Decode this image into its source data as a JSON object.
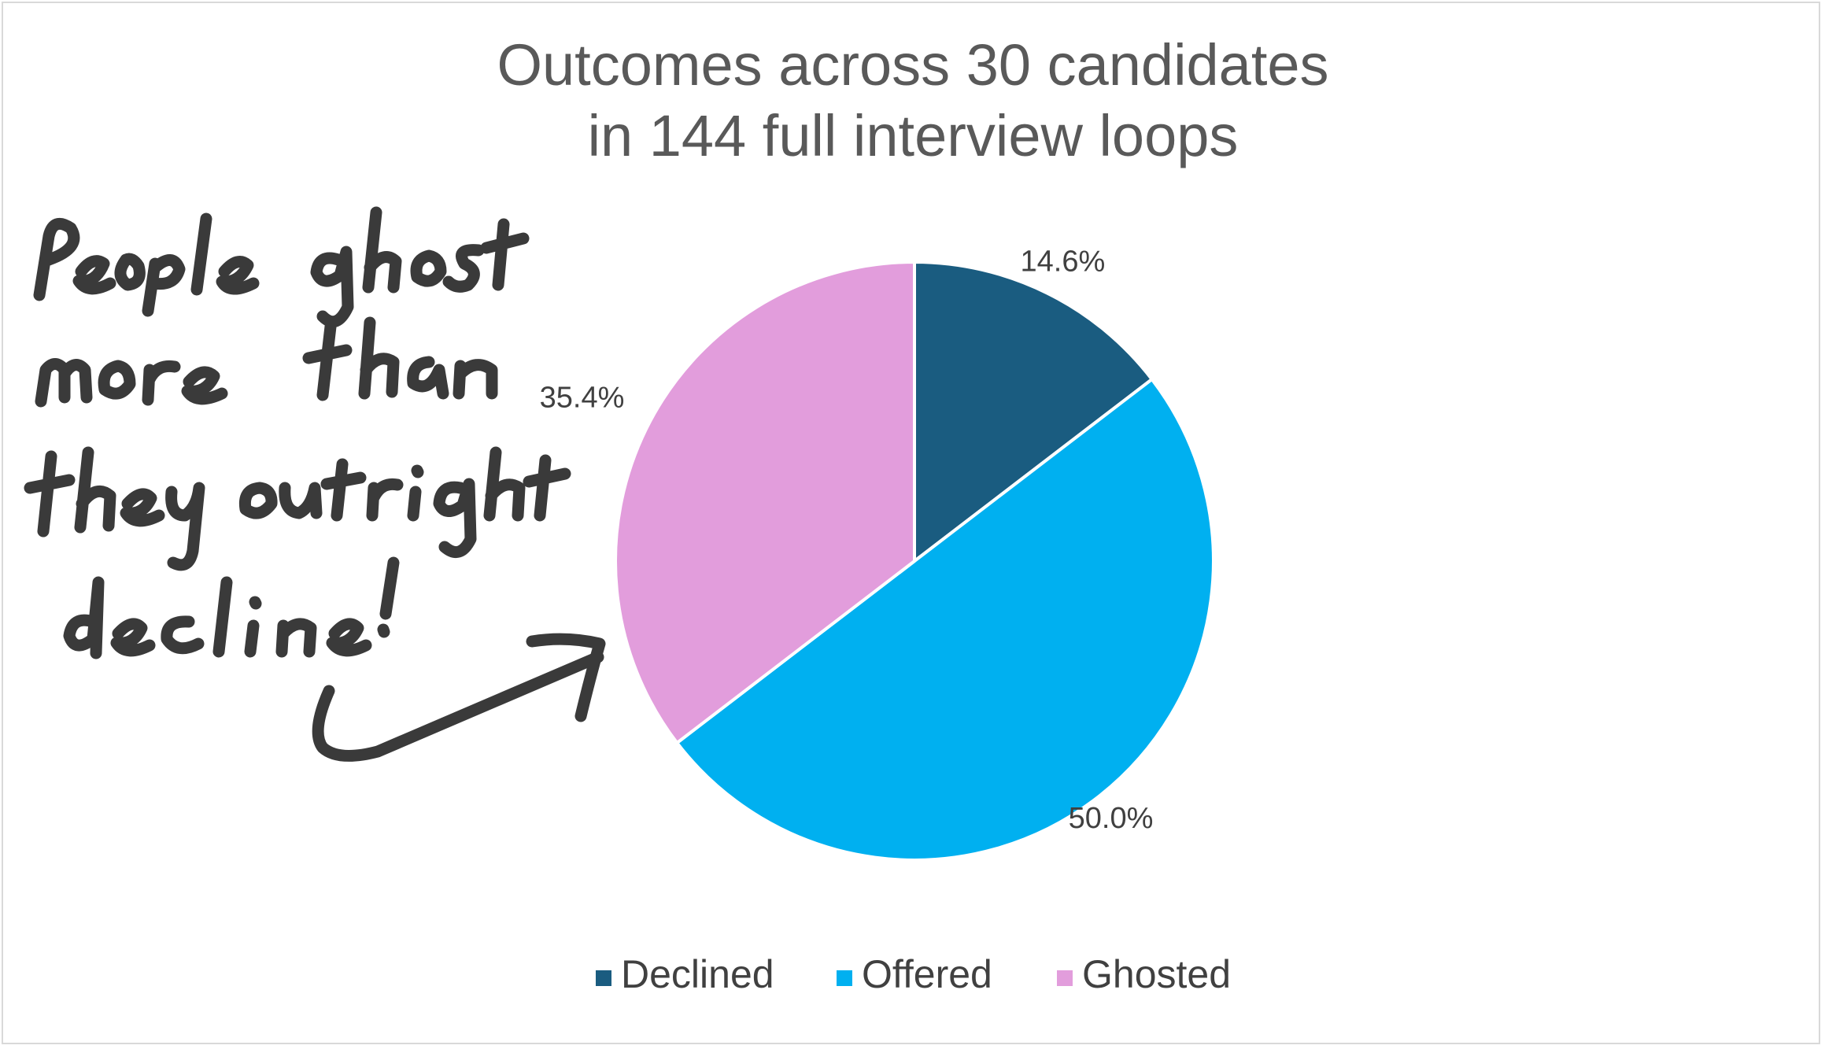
{
  "chart_data": {
    "type": "pie",
    "title_lines": [
      "Outcomes across 30 candidates",
      "in 144 full interview loops"
    ],
    "categories": [
      "Declined",
      "Offered",
      "Ghosted"
    ],
    "values": [
      14.6,
      50.0,
      35.4
    ],
    "value_labels": [
      "14.6%",
      "50.0%",
      "35.4%"
    ],
    "colors": [
      "#1a5c80",
      "#00b0f0",
      "#e29ddc"
    ],
    "start_angle_deg": 0,
    "direction": "clockwise",
    "legend_position": "bottom"
  },
  "annotation": {
    "kind": "handwritten-note",
    "text": "People ghost more than they outright decline!",
    "points_to": "Ghosted",
    "ink_color": "#3a3a3a"
  }
}
